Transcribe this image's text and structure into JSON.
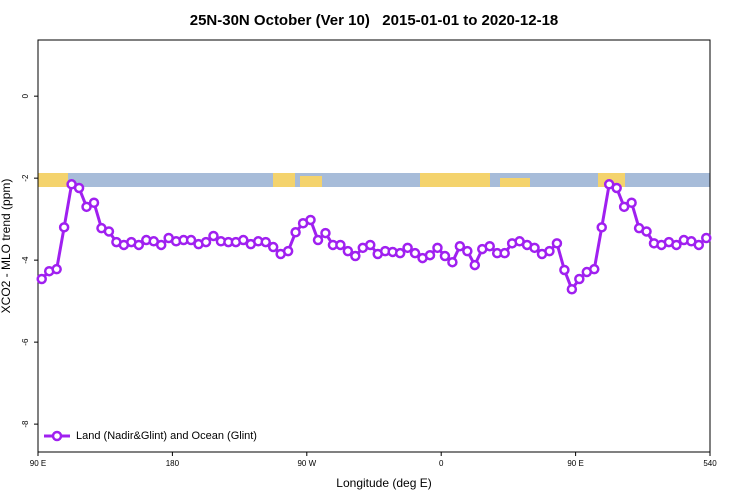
{
  "chart_data": {
    "type": "line",
    "title": "25N-30N October (Ver 10)   2015-01-01 to 2020-12-18",
    "xlabel": "Longitude (deg E)",
    "ylabel": "XCO2 - MLO trend (ppm)",
    "xlim": [
      90,
      540
    ],
    "ylim": [
      -8.68,
      1.37
    ],
    "xticks": [
      {
        "value": 90,
        "label": "90 E"
      },
      180,
      {
        "value": 270,
        "label": "90 W"
      },
      {
        "value": 360,
        "label": "0"
      },
      {
        "value": 450,
        "label": "90 E"
      },
      540
    ],
    "yticks": [
      0,
      -2,
      -4,
      -6,
      -8
    ],
    "legend": "bottomleft",
    "x": [
      92.5,
      97.5,
      102.5,
      107.5,
      112.5,
      117.5,
      122.5,
      127.5,
      132.5,
      137.5,
      142.5,
      147.5,
      152.5,
      157.5,
      162.5,
      167.5,
      172.5,
      177.5,
      182.5,
      187.5,
      192.5,
      197.5,
      202.5,
      207.5,
      212.5,
      217.5,
      222.5,
      227.5,
      232.5,
      237.5,
      242.5,
      247.5,
      252.5,
      257.5,
      262.5,
      267.5,
      272.5,
      277.5,
      282.5,
      287.5,
      292.5,
      297.5,
      302.5,
      307.5,
      312.5,
      317.5,
      322.5,
      327.5,
      332.5,
      337.5,
      342.5,
      347.5,
      352.5,
      357.5,
      362.5,
      367.5,
      372.5,
      377.5,
      382.5,
      387.5,
      392.5,
      397.5,
      402.5,
      407.5,
      412.5,
      417.5,
      422.5,
      427.5,
      432.5,
      437.5,
      442.5,
      447.5,
      452.5,
      457.5,
      462.5,
      467.5,
      472.5,
      477.5,
      482.5,
      487.5,
      492.5,
      497.5,
      502.5,
      507.5,
      512.5,
      517.5,
      522.5,
      527.5,
      532.5,
      537.5
    ],
    "series": [
      {
        "name": "Land (Nadir&Glint) and Ocean (Glint)",
        "color": "#a020f0",
        "values": [
          -4.46,
          -4.27,
          -4.22,
          -3.2,
          -2.15,
          -2.24,
          -2.7,
          -2.6,
          -3.22,
          -3.3,
          -3.56,
          -3.63,
          -3.56,
          -3.63,
          -3.51,
          -3.54,
          -3.63,
          -3.46,
          -3.54,
          -3.51,
          -3.51,
          -3.61,
          -3.56,
          -3.41,
          -3.54,
          -3.56,
          -3.56,
          -3.51,
          -3.61,
          -3.54,
          -3.56,
          -3.68,
          -3.85,
          -3.78,
          -3.32,
          -3.1,
          -3.02,
          -3.51,
          -3.34,
          -3.63,
          -3.63,
          -3.78,
          -3.9,
          -3.7,
          -3.63,
          -3.85,
          -3.78,
          -3.8,
          -3.83,
          -3.7,
          -3.83,
          -3.95,
          -3.88,
          -3.7,
          -3.9,
          -4.05,
          -3.66,
          -3.78,
          -4.12,
          -3.73,
          -3.66,
          -3.83,
          -3.83,
          -3.59,
          -3.54,
          -3.63,
          -3.7,
          -3.85,
          -3.78,
          -3.59,
          -4.24,
          -4.71,
          -4.46,
          -4.29,
          -4.22,
          -3.2,
          -2.15,
          -2.24,
          -2.7,
          -2.6,
          -3.22,
          -3.3,
          -3.59,
          -3.63,
          -3.56,
          -3.63,
          -3.51,
          -3.54,
          -3.63,
          -3.46
        ]
      }
    ]
  }
}
